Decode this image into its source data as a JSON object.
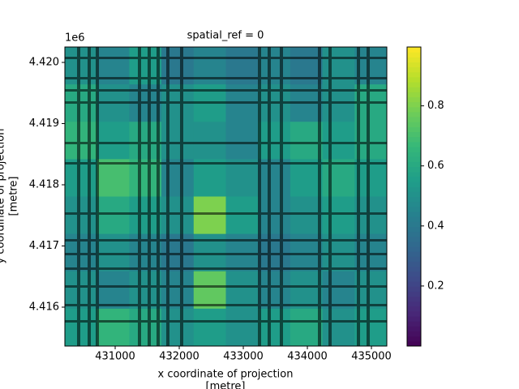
{
  "chart_data": {
    "type": "heatmap",
    "title": "spatial_ref = 0",
    "xlabel": [
      "x coordinate of projection",
      "[metre]"
    ],
    "ylabel": [
      "y coordinate of projection",
      "[metre]"
    ],
    "y_offset_label": "1e6",
    "xlim": [
      430215,
      435240
    ],
    "ylim": [
      4415364,
      4420252
    ],
    "xticks": [
      431000,
      432000,
      433000,
      434000,
      435000
    ],
    "yticks": [
      {
        "value": 4416000,
        "label": "4.416"
      },
      {
        "value": 4417000,
        "label": "4.417"
      },
      {
        "value": 4418000,
        "label": "4.418"
      },
      {
        "value": 4419000,
        "label": "4.419"
      },
      {
        "value": 4420000,
        "label": "4.420"
      }
    ],
    "clim": [
      0,
      0.996
    ],
    "cticks": [
      0.2,
      0.4,
      0.6,
      0.8
    ],
    "colormap": "viridis",
    "z": [
      [
        0.5,
        0.45,
        0.55,
        0.4,
        0.45,
        0.4,
        0.45,
        0.4,
        0.5,
        0.45
      ],
      [
        0.6,
        0.5,
        0.45,
        0.5,
        0.55,
        0.45,
        0.5,
        0.45,
        0.5,
        0.6
      ],
      [
        0.65,
        0.55,
        0.6,
        0.5,
        0.5,
        0.45,
        0.55,
        0.6,
        0.55,
        0.6
      ],
      [
        0.55,
        0.7,
        0.65,
        0.45,
        0.55,
        0.5,
        0.45,
        0.55,
        0.6,
        0.55
      ],
      [
        0.5,
        0.6,
        0.55,
        0.5,
        0.8,
        0.55,
        0.45,
        0.5,
        0.55,
        0.5
      ],
      [
        0.45,
        0.5,
        0.45,
        0.4,
        0.5,
        0.45,
        0.4,
        0.45,
        0.5,
        0.45
      ],
      [
        0.5,
        0.45,
        0.5,
        0.45,
        0.75,
        0.5,
        0.45,
        0.5,
        0.45,
        0.5
      ],
      [
        0.55,
        0.65,
        0.6,
        0.5,
        0.55,
        0.5,
        0.55,
        0.6,
        0.5,
        0.55
      ]
    ]
  }
}
